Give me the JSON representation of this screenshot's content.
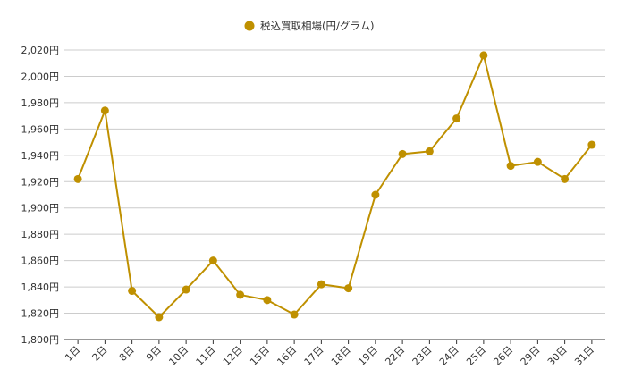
{
  "chart_data": {
    "type": "line",
    "title": "",
    "xlabel": "",
    "ylabel": "",
    "legend_position": "top-center",
    "grid": true,
    "y_unit_suffix": "円",
    "ylim": [
      1800,
      2020
    ],
    "y_ticks": [
      1800,
      1820,
      1840,
      1860,
      1880,
      1900,
      1920,
      1940,
      1960,
      1980,
      2000,
      2020
    ],
    "y_tick_labels": [
      "1,800円",
      "1,820円",
      "1,840円",
      "1,860円",
      "1,880円",
      "1,900円",
      "1,920円",
      "1,940円",
      "1,960円",
      "1,980円",
      "2,000円",
      "2,020円"
    ],
    "categories": [
      "1日",
      "2日",
      "8日",
      "9日",
      "10日",
      "11日",
      "12日",
      "15日",
      "16日",
      "17日",
      "18日",
      "19日",
      "22日",
      "23日",
      "24日",
      "25日",
      "26日",
      "29日",
      "30日",
      "31日"
    ],
    "series": [
      {
        "name": "税込買取相場(円/グラム)",
        "color": "#bf9000",
        "values": [
          1922,
          1974,
          1837,
          1817,
          1838,
          1860,
          1834,
          1830,
          1819,
          1842,
          1839,
          1910,
          1941,
          1943,
          1968,
          2016,
          1932,
          1935,
          1922,
          1948
        ]
      }
    ]
  }
}
